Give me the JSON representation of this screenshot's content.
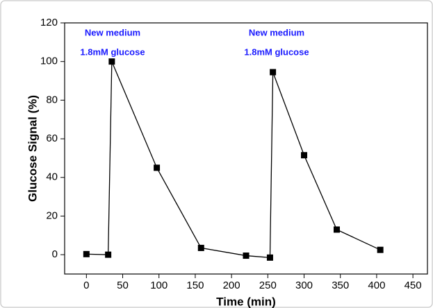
{
  "chart_data": {
    "type": "line",
    "x_label": "Time (min)",
    "y_label": "Glucose Signal (%)",
    "annotations": [
      "New medium",
      "1.8mM glucose",
      "New medium",
      "1.8mM glucose"
    ],
    "annotation_color": "#1a1aff",
    "series": [
      {
        "color": "#000000",
        "x": [
          0,
          30,
          35,
          97,
          158,
          220,
          253,
          257,
          300,
          345,
          405
        ],
        "values": [
          0.3,
          0,
          100,
          45,
          3.5,
          -0.5,
          -1.5,
          94.5,
          51.5,
          13,
          2.5
        ]
      }
    ],
    "xlim": [
      -30,
      470
    ],
    "xticks": [
      0,
      50,
      100,
      150,
      200,
      250,
      300,
      350,
      400,
      450
    ],
    "ylim": [
      -10,
      120
    ],
    "yticks": [
      0,
      20,
      40,
      60,
      80,
      100,
      120
    ],
    "grid": false
  }
}
